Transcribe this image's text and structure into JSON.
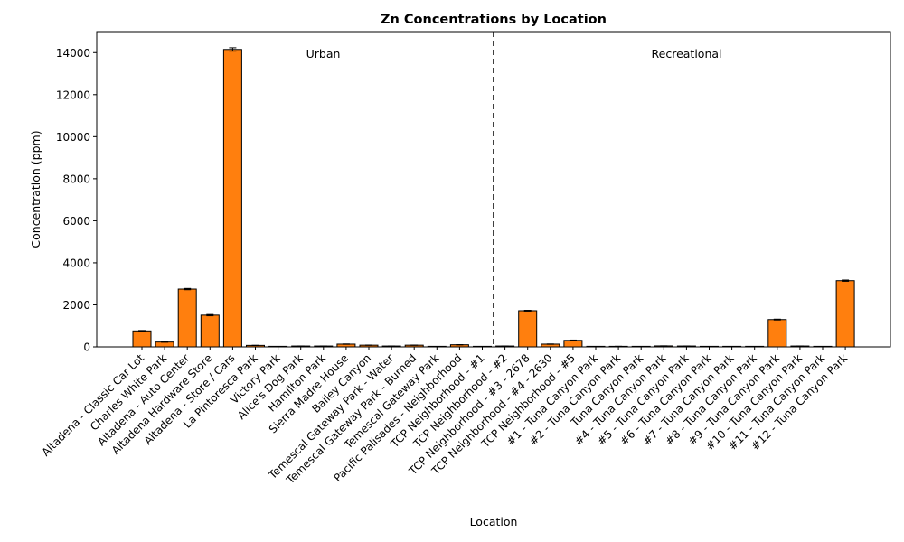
{
  "chart_data": {
    "type": "bar",
    "title": "Zn Concentrations by Location",
    "xlabel": "Location",
    "ylabel": "Concentration (ppm)",
    "ylim": [
      0,
      15000
    ],
    "yticks": [
      0,
      2000,
      4000,
      6000,
      8000,
      10000,
      12000,
      14000
    ],
    "bar_color": "#ff7f0e",
    "edge_color": "#000000",
    "grid": false,
    "divider_after_index": 15,
    "regions": [
      {
        "label": "Urban"
      },
      {
        "label": "Recreational"
      }
    ],
    "categories": [
      "Altadena - Classic Car Lot",
      "Charles White Park",
      "Altadena - Auto Center",
      "Altadena Hardware Store",
      "Altadena - Store / Cars",
      "La Pintoresca Park",
      "Victory Park",
      "Alice's Dog Park",
      "Hamilton Park",
      "Sierra Madre House",
      "Bailey Canyon",
      "Temescal Gateway Park - Water",
      "Temescal Gateway Park - Burned",
      "Temescal Gateway Park",
      "Pacific Palisades - Neighborhood",
      "TCP Neighborhood - #1",
      "TCP Neighborhood - #2",
      "TCP Neighborhood - #3 - 2678",
      "TCP Neighborhood - #4 - 2630",
      "TCP Neighborhood - #5",
      "#1 - Tuna Canyon Park",
      "#2 - Tuna Canyon Park",
      "Tuna Canyon Park",
      "#4 - Tuna Canyon Park",
      "#5 - Tuna Canyon Park",
      "#6 - Tuna Canyon Park",
      "#7 - Tuna Canyon Park",
      "#8 - Tuna Canyon Park",
      "#9 - Tuna Canyon Park",
      "#10 - Tuna Canyon Park",
      "#11 - Tuna Canyon Park",
      "#12 - Tuna Canyon Park"
    ],
    "values": [
      760,
      230,
      2750,
      1510,
      14150,
      70,
      20,
      40,
      40,
      130,
      80,
      40,
      80,
      20,
      100,
      20,
      40,
      1720,
      130,
      310,
      15,
      25,
      15,
      45,
      40,
      15,
      15,
      15,
      1300,
      40,
      20,
      3150
    ],
    "errors": [
      20,
      10,
      30,
      30,
      80,
      5,
      2,
      3,
      3,
      8,
      5,
      3,
      5,
      2,
      6,
      2,
      3,
      20,
      8,
      15,
      2,
      2,
      2,
      3,
      3,
      2,
      2,
      2,
      20,
      3,
      2,
      30
    ]
  }
}
